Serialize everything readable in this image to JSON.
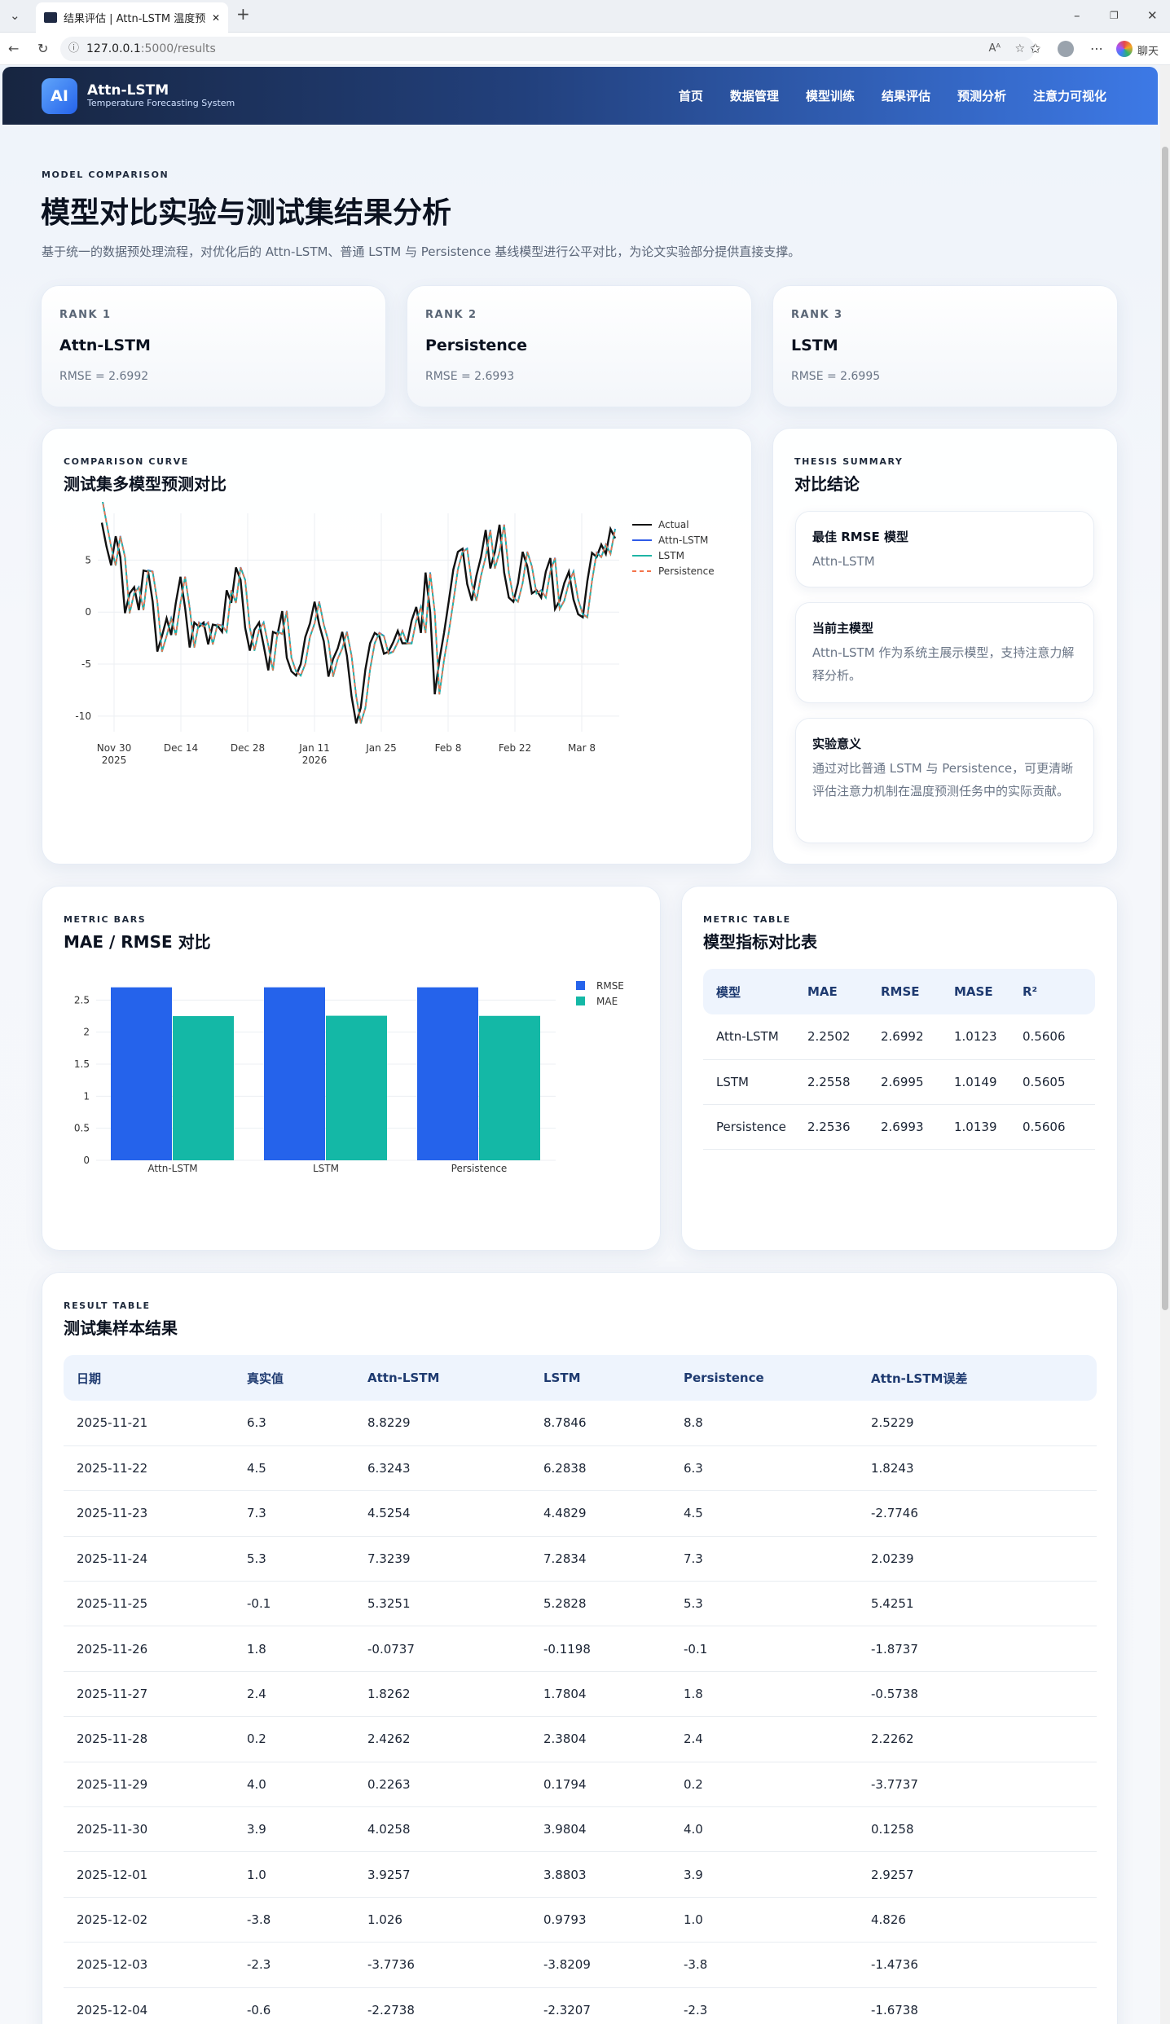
{
  "browser": {
    "tab_title": "结果评估 | Attn-LSTM 温度预测系",
    "url_host": "127.0.0.1",
    "url_path": ":5000/results",
    "profile_label": "聊天"
  },
  "brand": {
    "logo": "AI",
    "name": "Attn-LSTM",
    "subtitle": "Temperature Forecasting System"
  },
  "nav": [
    "首页",
    "数据管理",
    "模型训练",
    "结果评估",
    "预测分析",
    "注意力可视化"
  ],
  "hero": {
    "eyebrow": "MODEL COMPARISON",
    "title": "模型对比实验与测试集结果分析",
    "subtitle": "基于统一的数据预处理流程，对优化后的 Attn-LSTM、普通 LSTM 与 Persistence 基线模型进行公平对比，为论文实验部分提供直接支撑。"
  },
  "ranks": [
    {
      "label": "RANK 1",
      "name": "Attn-LSTM",
      "value": "RMSE = 2.6992"
    },
    {
      "label": "RANK 2",
      "name": "Persistence",
      "value": "RMSE = 2.6993"
    },
    {
      "label": "RANK 3",
      "name": "LSTM",
      "value": "RMSE = 2.6995"
    }
  ],
  "curve": {
    "eyebrow": "COMPARISON CURVE",
    "title": "测试集多模型预测对比"
  },
  "summary": {
    "eyebrow": "THESIS SUMMARY",
    "title": "对比结论",
    "items": [
      {
        "title": "最佳 RMSE 模型",
        "body": "Attn-LSTM"
      },
      {
        "title": "当前主模型",
        "body": "Attn-LSTM 作为系统主展示模型，支持注意力解释分析。"
      },
      {
        "title": "实验意义",
        "body": "通过对比普通 LSTM 与 Persistence，可更清晰评估注意力机制在温度预测任务中的实际贡献。"
      }
    ]
  },
  "bars": {
    "eyebrow": "METRIC BARS",
    "title": "MAE / RMSE 对比"
  },
  "metric_table": {
    "eyebrow": "METRIC TABLE",
    "title": "模型指标对比表",
    "headers": [
      "模型",
      "MAE",
      "RMSE",
      "MASE",
      "R²"
    ],
    "rows": [
      [
        "Attn-LSTM",
        "2.2502",
        "2.6992",
        "1.0123",
        "0.5606"
      ],
      [
        "LSTM",
        "2.2558",
        "2.6995",
        "1.0149",
        "0.5605"
      ],
      [
        "Persistence",
        "2.2536",
        "2.6993",
        "1.0139",
        "0.5606"
      ]
    ]
  },
  "result_table": {
    "eyebrow": "RESULT TABLE",
    "title": "测试集样本结果",
    "headers": [
      "日期",
      "真实值",
      "Attn-LSTM",
      "LSTM",
      "Persistence",
      "Attn-LSTM误差"
    ],
    "rows": [
      [
        "2025-11-21",
        "6.3",
        "8.8229",
        "8.7846",
        "8.8",
        "2.5229"
      ],
      [
        "2025-11-22",
        "4.5",
        "6.3243",
        "6.2838",
        "6.3",
        "1.8243"
      ],
      [
        "2025-11-23",
        "7.3",
        "4.5254",
        "4.4829",
        "4.5",
        "-2.7746"
      ],
      [
        "2025-11-24",
        "5.3",
        "7.3239",
        "7.2834",
        "7.3",
        "2.0239"
      ],
      [
        "2025-11-25",
        "-0.1",
        "5.3251",
        "5.2828",
        "5.3",
        "5.4251"
      ],
      [
        "2025-11-26",
        "1.8",
        "-0.0737",
        "-0.1198",
        "-0.1",
        "-1.8737"
      ],
      [
        "2025-11-27",
        "2.4",
        "1.8262",
        "1.7804",
        "1.8",
        "-0.5738"
      ],
      [
        "2025-11-28",
        "0.2",
        "2.4262",
        "2.3804",
        "2.4",
        "2.2262"
      ],
      [
        "2025-11-29",
        "4.0",
        "0.2263",
        "0.1794",
        "0.2",
        "-3.7737"
      ],
      [
        "2025-11-30",
        "3.9",
        "4.0258",
        "3.9804",
        "4.0",
        "0.1258"
      ],
      [
        "2025-12-01",
        "1.0",
        "3.9257",
        "3.8803",
        "3.9",
        "2.9257"
      ],
      [
        "2025-12-02",
        "-3.8",
        "1.026",
        "0.9793",
        "1.0",
        "4.826"
      ],
      [
        "2025-12-03",
        "-2.3",
        "-3.7736",
        "-3.8209",
        "-3.8",
        "-1.4736"
      ],
      [
        "2025-12-04",
        "-0.6",
        "-2.2738",
        "-2.3207",
        "-2.3",
        "-1.6738"
      ]
    ]
  },
  "chart_data": [
    {
      "type": "line",
      "x_ticks": [
        "Nov 30\n2025",
        "Dec 14",
        "Dec 28",
        "Jan 11\n2026",
        "Jan 25",
        "Feb 8",
        "Feb 22",
        "Mar 8"
      ],
      "y_ticks": [
        5,
        0,
        -5,
        -10
      ],
      "ylim": [
        -11.5,
        9.5
      ],
      "series_names": [
        "Actual",
        "Attn-LSTM",
        "LSTM",
        "Persistence"
      ],
      "series_colors": [
        "#111111",
        "#2f5be8",
        "#1fb5a5",
        "#f4734a"
      ],
      "actual": [
        8.6,
        6.3,
        4.5,
        7.3,
        5.3,
        -0.1,
        1.8,
        2.4,
        0.2,
        4.0,
        3.9,
        1.0,
        -3.8,
        -2.3,
        -0.6,
        -2.2,
        0.9,
        3.4,
        0.4,
        -3.4,
        -1.0,
        -1.4,
        -1.0,
        -3.1,
        -1.2,
        -1.3,
        -1.9,
        2.1,
        0.9,
        4.3,
        3.1,
        -1.5,
        -3.7,
        -1.7,
        -1.0,
        -3.2,
        -5.6,
        -1.9,
        -2.1,
        0.1,
        -4.4,
        -5.7,
        -6.1,
        -5.0,
        -2.4,
        -1.1,
        1.0,
        -1.2,
        -2.8,
        -6.2,
        -4.5,
        -3.5,
        -1.9,
        -4.2,
        -8.1,
        -10.7,
        -9.2,
        -5.5,
        -3.0,
        -2.0,
        -2.3,
        -4.0,
        -3.8,
        -2.9,
        -1.8,
        -3.0,
        -3.0,
        -0.8,
        0.5,
        -2.0,
        3.8,
        0.0,
        -7.9,
        -4.6,
        -2.0,
        1.0,
        4.1,
        5.8,
        6.1,
        2.7,
        1.1,
        3.5,
        5.3,
        7.9,
        4.2,
        5.8,
        8.4,
        3.8,
        1.4,
        1.0,
        2.8,
        5.8,
        4.4,
        1.8,
        2.1,
        1.4,
        3.9,
        5.2,
        0.3,
        1.1,
        2.8,
        3.9,
        1.2,
        -0.2,
        -0.5,
        3.0,
        5.7,
        5.3,
        6.5,
        5.6,
        8.0,
        7.1
      ]
    },
    {
      "type": "bar",
      "categories": [
        "Attn-LSTM",
        "LSTM",
        "Persistence"
      ],
      "series": [
        {
          "name": "RMSE",
          "values": [
            2.6992,
            2.6995,
            2.6993
          ],
          "color": "#2563eb"
        },
        {
          "name": "MAE",
          "values": [
            2.2502,
            2.2558,
            2.2536
          ],
          "color": "#14b8a6"
        }
      ],
      "y_ticks": [
        0,
        0.5,
        1,
        1.5,
        2,
        2.5
      ],
      "ylim": [
        0,
        2.95
      ]
    }
  ]
}
